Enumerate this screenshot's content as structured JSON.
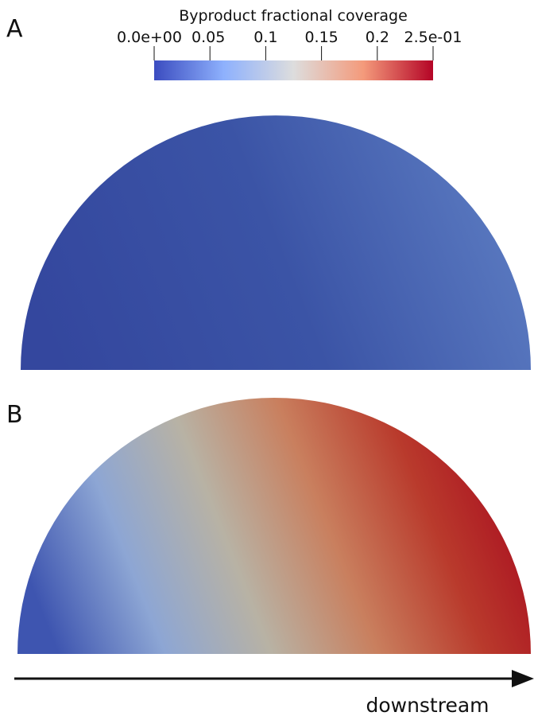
{
  "panels": {
    "a_label": "A",
    "b_label": "B"
  },
  "colorbar": {
    "title": "Byproduct fractional coverage",
    "ticks": [
      {
        "value": 0.0,
        "label": "0.0e+00"
      },
      {
        "value": 0.05,
        "label": "0.05"
      },
      {
        "value": 0.1,
        "label": "0.1"
      },
      {
        "value": 0.15,
        "label": "0.15"
      },
      {
        "value": 0.2,
        "label": "0.2"
      },
      {
        "value": 0.25,
        "label": "2.5e-01"
      }
    ],
    "range": [
      0.0,
      0.25
    ],
    "colormap": "cool to warm",
    "colors": [
      "#3b4cc0",
      "#8eb1fd",
      "#dddddd",
      "#f49a7b",
      "#b40426"
    ]
  },
  "field_colors": {
    "panel_a": [
      "#34479e",
      "#3b54a6",
      "#5c7cc2"
    ],
    "panel_b": [
      "#3e55b0",
      "#8da6d4",
      "#b8b2a4",
      "#c97f5e",
      "#b93a2c",
      "#a80b1f"
    ]
  },
  "flow": {
    "label": "downstream",
    "direction": "left-to-right"
  }
}
